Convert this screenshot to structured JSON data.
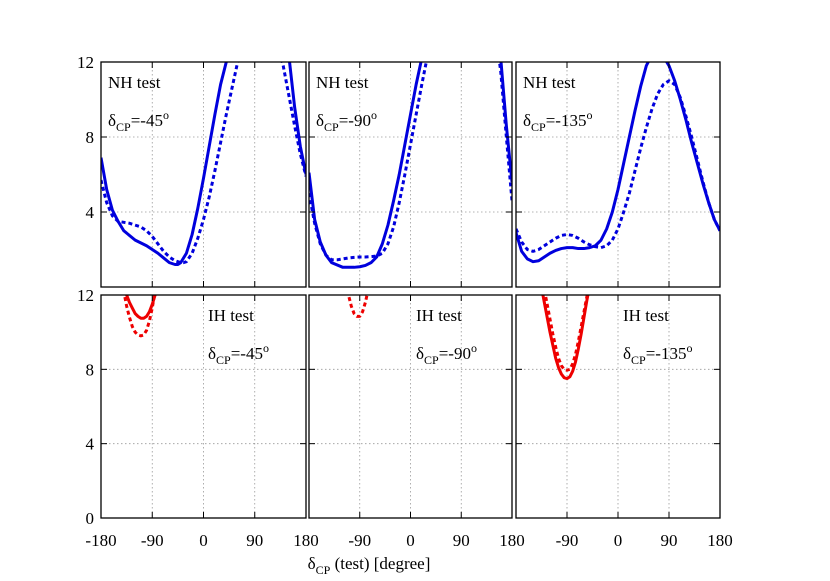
{
  "chart_data": {
    "type": "line",
    "xlabel_main": "δ",
    "xlabel_sub": "CP",
    "xlabel_rest": " (test) [degree]",
    "x_ticks": [
      -180,
      -90,
      0,
      90,
      180
    ],
    "x_tick_labels_first": [
      "-180",
      "-90",
      "0",
      "90",
      "180"
    ],
    "x_tick_labels_rest": [
      "-90",
      "0",
      "90",
      "180"
    ],
    "y_ticks_top": [
      4,
      8,
      12
    ],
    "y_ticks_bottom": [
      0,
      4,
      8,
      12
    ],
    "xlim": [
      -180,
      180
    ],
    "ylim_top": [
      0,
      12
    ],
    "ylim_bottom": [
      0,
      12
    ],
    "grid": true,
    "colors": {
      "nh": "#0000dd",
      "ih": "#ee0000"
    },
    "panels": [
      {
        "row": 0,
        "col": 0,
        "label": "NH test",
        "delta_main": "δ",
        "delta_sub": "CP",
        "delta_val": "=-45",
        "delta_sup": "o",
        "series": [
          {
            "style": "solid",
            "x": [
              -180,
              -170,
              -160,
              -150,
              -140,
              -120,
              -100,
              -80,
              -70,
              -60,
              -50,
              -45,
              -40,
              -30,
              -20,
              -10,
              0,
              10,
              20,
              30,
              40,
              50,
              60,
              70,
              80,
              90,
              100,
              110,
              120,
              130,
              140,
              150,
              160,
              170,
              180
            ],
            "y": [
              6.9,
              5.2,
              4.1,
              3.5,
              3.0,
              2.5,
              2.2,
              1.8,
              1.55,
              1.3,
              1.2,
              1.2,
              1.3,
              1.8,
              2.8,
              4.2,
              5.8,
              7.5,
              9.2,
              10.8,
              12.0,
              13.2,
              14,
              14,
              14,
              14,
              14,
              14,
              14,
              14,
              14,
              12.3,
              9.6,
              7.5,
              6.0
            ]
          },
          {
            "style": "dotted",
            "x": [
              -180,
              -170,
              -160,
              -150,
              -140,
              -130,
              -120,
              -110,
              -100,
              -90,
              -80,
              -70,
              -60,
              -50,
              -40,
              -35,
              -30,
              -20,
              -10,
              0,
              10,
              20,
              30,
              40,
              50,
              60,
              70,
              80,
              90,
              100,
              110,
              120,
              130,
              140,
              150,
              160,
              170,
              180
            ],
            "y": [
              5.7,
              4.5,
              3.8,
              3.5,
              3.45,
              3.4,
              3.3,
              3.2,
              3.0,
              2.7,
              2.3,
              1.9,
              1.6,
              1.4,
              1.3,
              1.3,
              1.35,
              1.8,
              2.6,
              3.6,
              4.8,
              6.2,
              7.7,
              9.2,
              10.6,
              12.0,
              13.2,
              14,
              14,
              14,
              14,
              14,
              13,
              11.8,
              10.2,
              8.6,
              7.1,
              5.9
            ]
          }
        ]
      },
      {
        "row": 0,
        "col": 1,
        "label": "NH test",
        "delta_main": "δ",
        "delta_sub": "CP",
        "delta_val": "=-90",
        "delta_sup": "o",
        "series": [
          {
            "style": "solid",
            "x": [
              -180,
              -170,
              -160,
              -150,
              -140,
              -120,
              -100,
              -90,
              -80,
              -70,
              -60,
              -50,
              -40,
              -30,
              -20,
              -10,
              0,
              10,
              20,
              30,
              40,
              50,
              60,
              70,
              80,
              90,
              100,
              110,
              120,
              130,
              140,
              150,
              160,
              170,
              180
            ],
            "y": [
              6.1,
              3.6,
              2.4,
              1.7,
              1.3,
              1.05,
              1.05,
              1.08,
              1.15,
              1.3,
              1.6,
              2.3,
              3.3,
              4.6,
              6.0,
              7.6,
              9.2,
              10.8,
              12.2,
              13.6,
              14,
              14,
              14,
              14,
              14,
              14,
              14,
              14,
              14,
              14,
              14,
              14,
              12.2,
              8.6,
              5.6
            ]
          },
          {
            "style": "dotted",
            "x": [
              -180,
              -170,
              -160,
              -150,
              -140,
              -130,
              -120,
              -110,
              -100,
              -90,
              -80,
              -70,
              -60,
              -50,
              -40,
              -30,
              -20,
              -10,
              0,
              10,
              20,
              30,
              40,
              50,
              60,
              70,
              80,
              90,
              100,
              110,
              120,
              130,
              140,
              150,
              160,
              170,
              180
            ],
            "y": [
              5.0,
              3.4,
              2.3,
              1.7,
              1.45,
              1.45,
              1.5,
              1.55,
              1.58,
              1.6,
              1.6,
              1.62,
              1.65,
              1.8,
              2.3,
              3.2,
              4.5,
              6.0,
              7.6,
              9.2,
              10.8,
              12.3,
              13.8,
              14,
              14,
              14,
              14,
              14,
              14,
              14,
              14,
              14,
              14,
              13.8,
              11.5,
              8.0,
              4.6
            ]
          }
        ]
      },
      {
        "row": 0,
        "col": 2,
        "label": "NH test",
        "delta_main": "δ",
        "delta_sub": "CP",
        "delta_val": "=-135",
        "delta_sup": "o",
        "series": [
          {
            "style": "solid",
            "x": [
              -180,
              -170,
              -160,
              -150,
              -140,
              -130,
              -120,
              -110,
              -100,
              -90,
              -80,
              -70,
              -60,
              -50,
              -40,
              -30,
              -20,
              -10,
              0,
              10,
              20,
              30,
              40,
              50,
              60,
              70,
              80,
              90,
              100,
              110,
              120,
              130,
              140,
              150,
              160,
              170,
              180
            ],
            "y": [
              2.9,
              1.9,
              1.5,
              1.35,
              1.4,
              1.6,
              1.8,
              1.95,
              2.05,
              2.1,
              2.1,
              2.05,
              2.05,
              2.1,
              2.2,
              2.5,
              3.1,
              4.0,
              5.2,
              6.6,
              8.0,
              9.4,
              10.7,
              11.8,
              12.4,
              12.6,
              12.3,
              11.8,
              11.0,
              10.0,
              8.9,
              7.7,
              6.6,
              5.5,
              4.5,
              3.6,
              3.0
            ]
          },
          {
            "style": "dotted",
            "x": [
              -180,
              -170,
              -160,
              -150,
              -140,
              -130,
              -120,
              -110,
              -100,
              -90,
              -80,
              -70,
              -60,
              -50,
              -40,
              -30,
              -20,
              -10,
              0,
              10,
              20,
              30,
              40,
              50,
              60,
              70,
              80,
              90,
              100,
              110,
              120,
              130,
              140,
              150,
              160,
              170,
              180
            ],
            "y": [
              3.1,
              2.4,
              2.0,
              1.9,
              2.0,
              2.2,
              2.4,
              2.6,
              2.75,
              2.8,
              2.75,
              2.6,
              2.4,
              2.25,
              2.15,
              2.1,
              2.2,
              2.5,
              3.1,
              4.0,
              5.0,
              6.2,
              7.4,
              8.5,
              9.5,
              10.3,
              10.8,
              11.0,
              10.8,
              10.1,
              9.1,
              8.0,
              6.8,
              5.6,
              4.5,
              3.6,
              3.0
            ]
          }
        ]
      },
      {
        "row": 1,
        "col": 0,
        "label": "IH test",
        "delta_main": "δ",
        "delta_sub": "CP",
        "delta_val": "=-45",
        "delta_sup": "o",
        "series": [
          {
            "style": "solid",
            "x": [
              -145,
              -140,
              -135,
              -130,
              -125,
              -120,
              -115,
              -110,
              -105,
              -100,
              -95,
              -90,
              -85,
              -80,
              -75,
              -70,
              -65
            ],
            "y": [
              13,
              12.4,
              12.0,
              11.6,
              11.3,
              11.0,
              10.85,
              10.75,
              10.75,
              10.85,
              11.1,
              11.5,
              12.0,
              12.6,
              13,
              13,
              13
            ]
          },
          {
            "style": "dotted",
            "x": [
              -145,
              -140,
              -135,
              -130,
              -125,
              -120,
              -115,
              -110,
              -105,
              -100,
              -95,
              -90,
              -85,
              -80,
              -75,
              -70
            ],
            "y": [
              13,
              12.2,
              11.4,
              10.8,
              10.3,
              10.0,
              9.85,
              9.8,
              9.85,
              10.1,
              10.6,
              11.3,
              12.2,
              13,
              13,
              13
            ]
          }
        ]
      },
      {
        "row": 1,
        "col": 1,
        "label": "IH test",
        "delta_main": "δ",
        "delta_sub": "CP",
        "delta_val": "=-90",
        "delta_sup": "o",
        "series": [
          {
            "style": "dotted",
            "x": [
              -115,
              -110,
              -105,
              -100,
              -95,
              -90,
              -85,
              -80,
              -75,
              -70
            ],
            "y": [
              13,
              12.0,
              11.4,
              11.0,
              10.85,
              10.85,
              11.1,
              11.6,
              12.3,
              13
            ]
          }
        ]
      },
      {
        "row": 1,
        "col": 2,
        "label": "IH test",
        "delta_main": "δ",
        "delta_sub": "CP",
        "delta_val": "=-135",
        "delta_sup": "o",
        "series": [
          {
            "style": "solid",
            "x": [
              -140,
              -135,
              -130,
              -125,
              -120,
              -115,
              -110,
              -105,
              -100,
              -95,
              -90,
              -85,
              -80,
              -75,
              -70,
              -65,
              -60,
              -55,
              -50,
              -45
            ],
            "y": [
              13,
              12.4,
              11.6,
              10.8,
              10.0,
              9.3,
              8.6,
              8.1,
              7.75,
              7.55,
              7.5,
              7.6,
              7.9,
              8.4,
              9.1,
              9.9,
              10.8,
              11.7,
              12.5,
              13
            ]
          },
          {
            "style": "dotted",
            "x": [
              -135,
              -130,
              -125,
              -120,
              -115,
              -110,
              -105,
              -100,
              -95,
              -90,
              -85,
              -80,
              -75,
              -70,
              -65,
              -60,
              -55,
              -50,
              -45
            ],
            "y": [
              13,
              12.3,
              11.5,
              10.7,
              9.9,
              9.2,
              8.6,
              8.2,
              8.0,
              7.95,
              8.0,
              8.3,
              8.8,
              9.5,
              10.3,
              11.1,
              11.9,
              12.6,
              13
            ]
          }
        ]
      }
    ]
  }
}
